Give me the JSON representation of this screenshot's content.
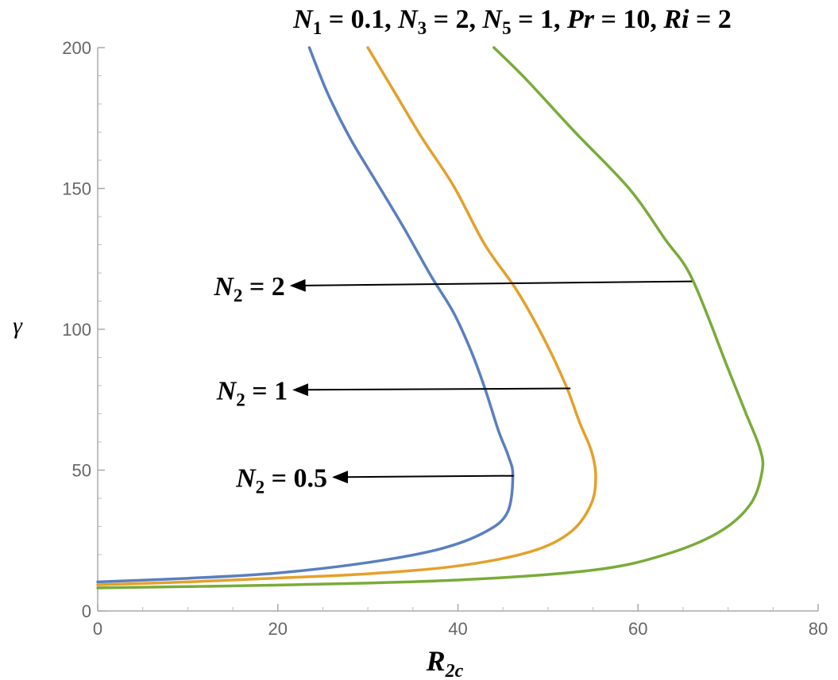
{
  "chart_data": {
    "type": "line",
    "title": "N1 = 0.1, N3 = 2, N5 = 1, Pr = 10, Ri = 2",
    "xlabel": "R2c",
    "ylabel": "γ",
    "xlim": [
      0,
      80
    ],
    "ylim": [
      0,
      200
    ],
    "xticks": [
      0,
      20,
      40,
      60,
      80
    ],
    "yticks": [
      0,
      50,
      100,
      150,
      200
    ],
    "grid": false,
    "series": [
      {
        "name": "N2 = 0.5",
        "color": "#5a7fbe",
        "points": [
          [
            0,
            10.3
          ],
          [
            10,
            11.6
          ],
          [
            20,
            13.5
          ],
          [
            30,
            17.2
          ],
          [
            38,
            22
          ],
          [
            43,
            28
          ],
          [
            45.5,
            35
          ],
          [
            46.1,
            48
          ],
          [
            45.6,
            55
          ],
          [
            44.5,
            64
          ],
          [
            43,
            79
          ],
          [
            41.5,
            92
          ],
          [
            39.5,
            106
          ],
          [
            37,
            119
          ],
          [
            34,
            136
          ],
          [
            31,
            152
          ],
          [
            28,
            168
          ],
          [
            25.5,
            184
          ],
          [
            23.5,
            200
          ]
        ]
      },
      {
        "name": "N2 = 1",
        "color": "#e4a02b",
        "points": [
          [
            0,
            9.3
          ],
          [
            10,
            10.3
          ],
          [
            20,
            11.7
          ],
          [
            30,
            13.2
          ],
          [
            40,
            16
          ],
          [
            48,
            21
          ],
          [
            52.5,
            28
          ],
          [
            54.8,
            38
          ],
          [
            55.3,
            48
          ],
          [
            54.8,
            57
          ],
          [
            53.5,
            67
          ],
          [
            52,
            80
          ],
          [
            49.5,
            97
          ],
          [
            46.5,
            114
          ],
          [
            43,
            130
          ],
          [
            39.5,
            151
          ],
          [
            36,
            168
          ],
          [
            33,
            184
          ],
          [
            30,
            200
          ]
        ]
      },
      {
        "name": "N2 = 2",
        "color": "#7aab3a",
        "points": [
          [
            0,
            8.2
          ],
          [
            20,
            9.2
          ],
          [
            40,
            11
          ],
          [
            55,
            14.5
          ],
          [
            63,
            20
          ],
          [
            69,
            28
          ],
          [
            72.5,
            38
          ],
          [
            73.8,
            50
          ],
          [
            73.5,
            58
          ],
          [
            72,
            70
          ],
          [
            70,
            86
          ],
          [
            66,
            118
          ],
          [
            63,
            132
          ],
          [
            59,
            150
          ],
          [
            53,
            170
          ],
          [
            47.5,
            189
          ],
          [
            44,
            200
          ]
        ]
      }
    ],
    "annotations": [
      {
        "label_base": "N",
        "label_sub": "2",
        "label_rest": " = 2",
        "value": "N2 = 2",
        "arrow_from": [
          66,
          117
        ],
        "arrow_to": [
          21.5,
          115.5
        ]
      },
      {
        "label_base": "N",
        "label_sub": "2",
        "label_rest": " = 1",
        "value": "N2 = 1",
        "arrow_from": [
          52.5,
          79
        ],
        "arrow_to": [
          21.8,
          78.5
        ]
      },
      {
        "label_base": "N",
        "label_sub": "2",
        "label_rest": " = 0.5",
        "value": "N2 = 0.5",
        "arrow_from": [
          46.2,
          48
        ],
        "arrow_to": [
          26.2,
          47.5
        ]
      }
    ]
  }
}
